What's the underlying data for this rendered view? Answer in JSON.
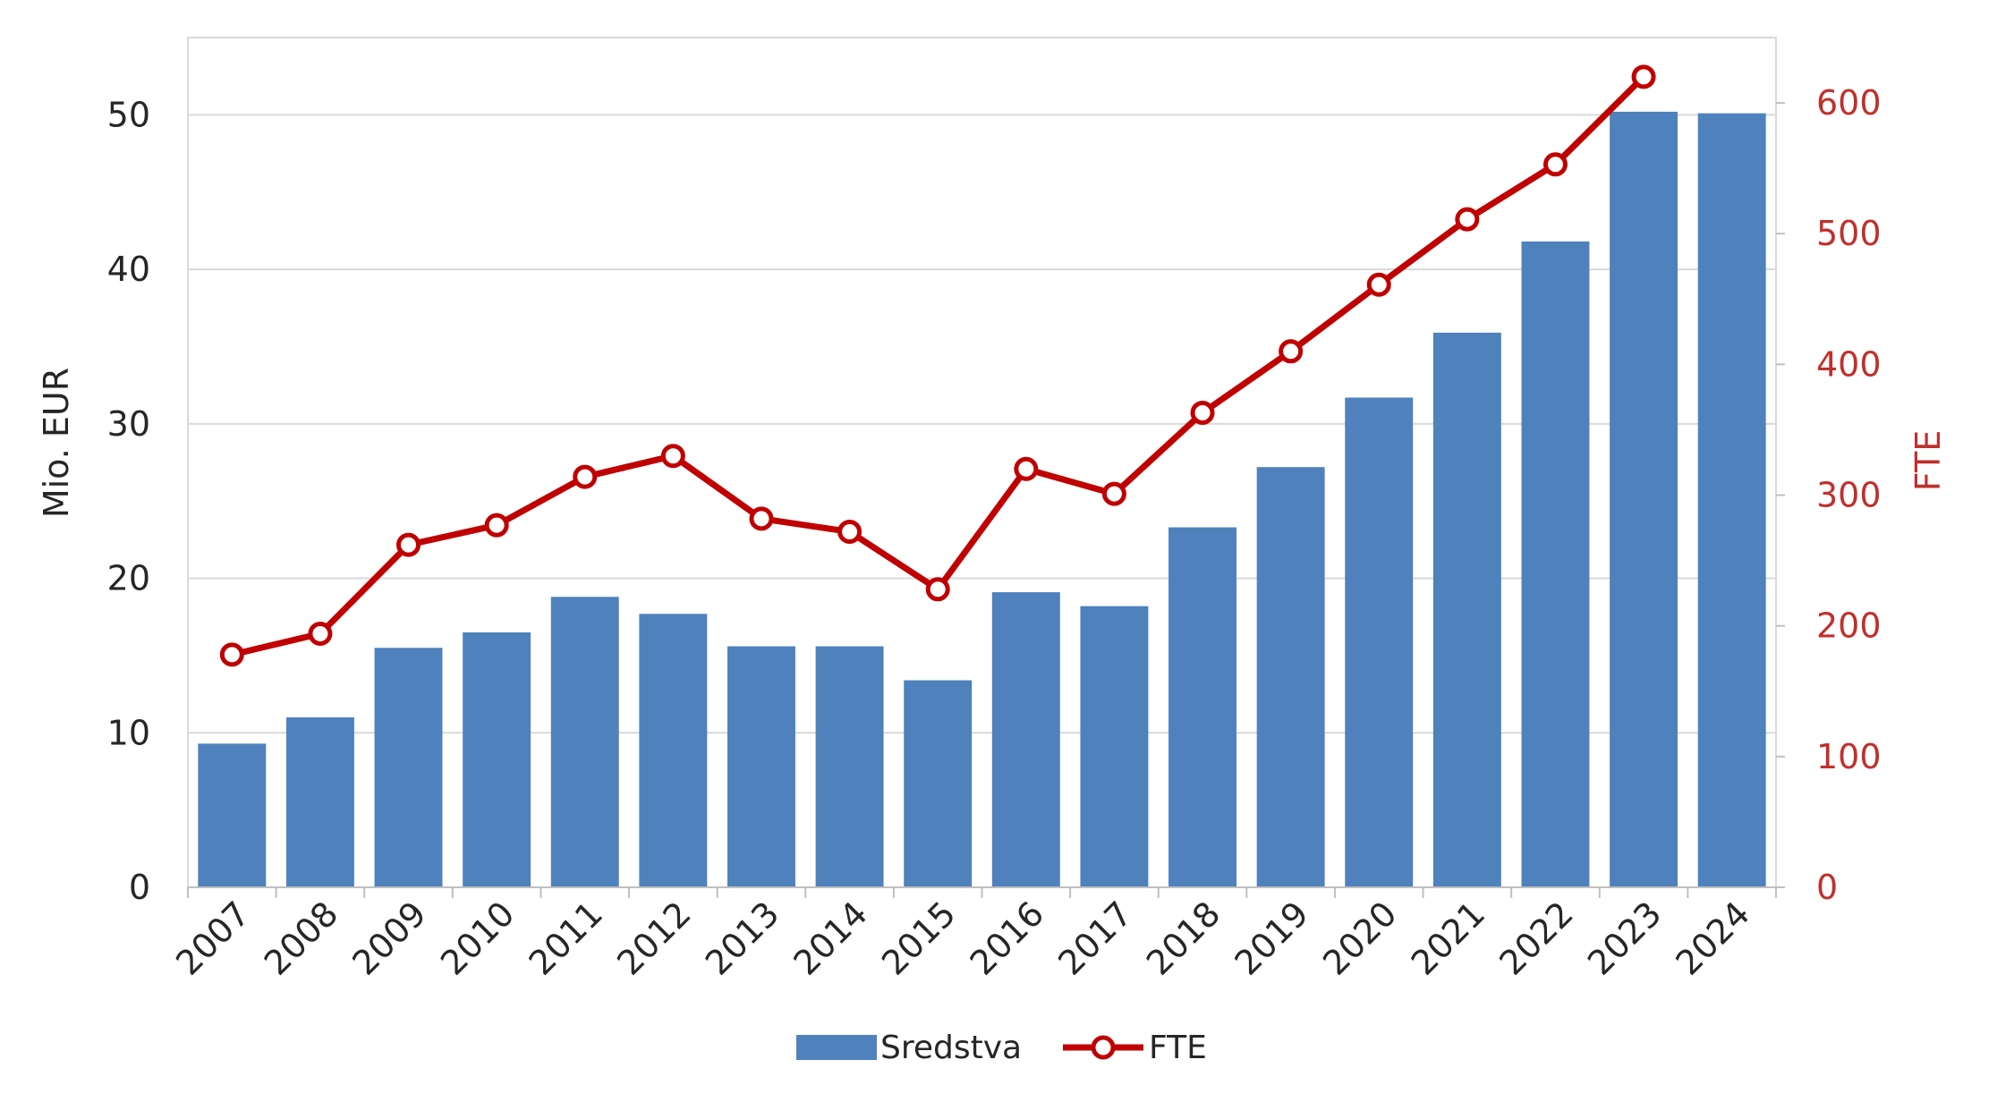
{
  "chart_data": {
    "type": "bar",
    "categories": [
      "2007",
      "2008",
      "2009",
      "2010",
      "2011",
      "2012",
      "2013",
      "2014",
      "2015",
      "2016",
      "2017",
      "2018",
      "2019",
      "2020",
      "2021",
      "2022",
      "2023",
      "2024"
    ],
    "series": [
      {
        "name": "Sredstva",
        "type": "bar",
        "axis": "left",
        "color": "#4f81bd",
        "values": [
          9.3,
          11.0,
          15.5,
          16.5,
          18.8,
          17.7,
          15.6,
          15.6,
          13.4,
          19.1,
          18.2,
          23.3,
          27.2,
          31.7,
          35.9,
          41.8,
          50.2,
          50.1
        ]
      },
      {
        "name": "FTE",
        "type": "line",
        "axis": "right",
        "color": "#c00000",
        "values": [
          178,
          194,
          262,
          277,
          314,
          330,
          282,
          272,
          228,
          320,
          301,
          363,
          410,
          461,
          511,
          553,
          620,
          null
        ]
      }
    ],
    "ylabel": "Mio. EUR",
    "y2label": "FTE",
    "ylim": [
      0,
      55
    ],
    "y2lim": [
      0,
      650
    ],
    "yticks": [
      0,
      10,
      20,
      30,
      40,
      50
    ],
    "y2ticks": [
      0,
      100,
      200,
      300,
      400,
      500,
      600
    ],
    "grid": true,
    "legend_position": "bottom"
  },
  "legend": {
    "items": [
      {
        "label": "Sredstva"
      },
      {
        "label": "FTE"
      }
    ]
  }
}
